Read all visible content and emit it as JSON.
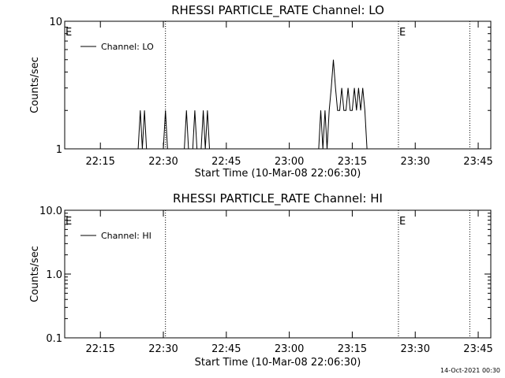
{
  "chart_data": [
    {
      "type": "line",
      "title": "RHESSI PARTICLE_RATE Channel: LO",
      "xlabel": "Start Time (10-Mar-08 22:06:30)",
      "ylabel": "Counts/sec",
      "y_scale": "log",
      "ylim": [
        1,
        10
      ],
      "xlim": [
        "22:06:30",
        "23:48:00"
      ],
      "x_ticks": [
        "22:15",
        "22:30",
        "22:45",
        "23:00",
        "23:15",
        "23:30",
        "23:45"
      ],
      "y_ticks": [
        "1",
        "10"
      ],
      "legend": "top-left",
      "grid": false,
      "vlines": [
        {
          "time": "22:30:30",
          "style": "dotted",
          "label": ""
        },
        {
          "time": "23:26:00",
          "style": "dotted",
          "label": "E"
        },
        {
          "time": "23:43:00",
          "style": "dotted",
          "label": ""
        },
        {
          "time": "22:06:30",
          "style": "none",
          "label": "E"
        }
      ],
      "series": [
        {
          "name": "Channel: LO",
          "color": "#000000",
          "x": [
            "22:06:30",
            "22:24:00",
            "22:24:30",
            "22:25:00",
            "22:25:30",
            "22:26:00",
            "22:30:00",
            "22:30:30",
            "22:31:00",
            "22:31:30",
            "22:35:00",
            "22:35:30",
            "22:36:00",
            "22:37:00",
            "22:37:30",
            "22:38:00",
            "22:39:00",
            "22:39:30",
            "22:40:00",
            "22:40:30",
            "22:41:00",
            "22:41:30",
            "23:07:00",
            "23:07:30",
            "23:08:00",
            "23:08:30",
            "23:09:00",
            "23:09:30",
            "23:10:00",
            "23:10:30",
            "23:11:00",
            "23:11:30",
            "23:12:00",
            "23:12:30",
            "23:13:00",
            "23:13:30",
            "23:14:00",
            "23:14:30",
            "23:15:00",
            "23:15:30",
            "23:16:00",
            "23:16:30",
            "23:17:00",
            "23:17:30",
            "23:18:00",
            "23:18:30",
            "23:19:00",
            "23:48:00"
          ],
          "values": [
            1,
            1,
            2,
            1,
            2,
            1,
            1,
            2,
            1,
            1,
            1,
            2,
            1,
            1,
            2,
            1,
            1,
            2,
            1,
            2,
            1,
            1,
            1,
            2,
            1,
            2,
            1,
            2,
            3,
            5,
            3,
            2,
            2,
            3,
            2,
            2,
            3,
            2,
            2,
            3,
            2,
            3,
            2,
            3,
            2,
            1,
            1,
            1
          ]
        }
      ]
    },
    {
      "type": "line",
      "title": "RHESSI PARTICLE_RATE Channel: HI",
      "xlabel": "Start Time (10-Mar-08 22:06:30)",
      "ylabel": "Counts/sec",
      "y_scale": "log",
      "ylim": [
        0.1,
        10
      ],
      "xlim": [
        "22:06:30",
        "23:48:00"
      ],
      "x_ticks": [
        "22:15",
        "22:30",
        "22:45",
        "23:00",
        "23:15",
        "23:30",
        "23:45"
      ],
      "y_ticks": [
        "0.1",
        "1.0",
        "10.0"
      ],
      "legend": "top-left",
      "grid": false,
      "vlines": [
        {
          "time": "22:30:30",
          "style": "dotted",
          "label": ""
        },
        {
          "time": "23:26:00",
          "style": "dotted",
          "label": "E"
        },
        {
          "time": "23:43:00",
          "style": "dotted",
          "label": ""
        },
        {
          "time": "22:06:30",
          "style": "none",
          "label": "E"
        }
      ],
      "series": [
        {
          "name": "Channel: HI",
          "color": "#000000",
          "x": [],
          "values": []
        }
      ]
    }
  ],
  "footer": {
    "timestamp": "14-Oct-2021 00:30"
  }
}
